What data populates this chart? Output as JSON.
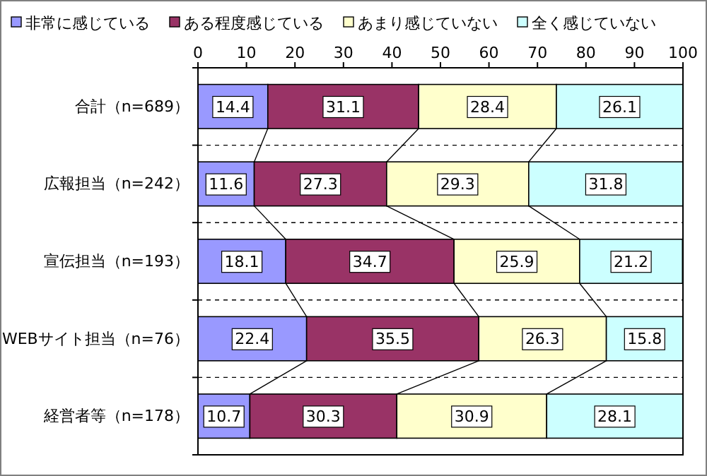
{
  "chart_data": {
    "type": "bar",
    "orientation": "horizontal",
    "stacked": true,
    "categories": [
      "合計（n=689）",
      "広報担当（n=242）",
      "宣伝担当（n=193）",
      "WEBサイト担当（n=76）",
      "経営者等（n=178）"
    ],
    "series": [
      {
        "name": "非常に感じている",
        "color": "#9999ff",
        "values": [
          14.4,
          11.6,
          18.1,
          22.4,
          10.7
        ]
      },
      {
        "name": "ある程度感じている",
        "color": "#993366",
        "values": [
          31.1,
          27.3,
          34.7,
          35.5,
          30.3
        ]
      },
      {
        "name": "あまり感じていない",
        "color": "#ffffcc",
        "values": [
          28.4,
          29.3,
          25.9,
          26.3,
          30.9
        ]
      },
      {
        "name": "全く感じていない",
        "color": "#ccffff",
        "values": [
          26.1,
          31.8,
          21.2,
          15.8,
          28.1
        ]
      }
    ],
    "xlim": [
      0,
      100
    ],
    "xticks": [
      0,
      10,
      20,
      30,
      40,
      50,
      60,
      70,
      80,
      90,
      100
    ],
    "data_labels": true,
    "grid": "y",
    "legend": "top"
  }
}
